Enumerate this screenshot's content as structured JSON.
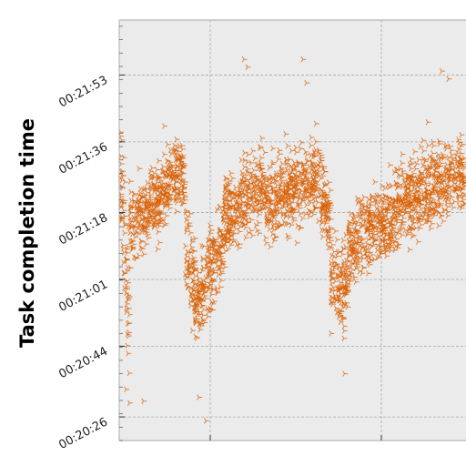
{
  "chart_data": {
    "type": "scatter",
    "title": "",
    "xlabel": "",
    "ylabel": "Task completion time",
    "y_ticks": [
      "00:20:26",
      "00:20:44",
      "00:21:01",
      "00:21:18",
      "00:21:36",
      "00:21:53"
    ],
    "y_tick_seconds": [
      1226,
      1244,
      1261,
      1278,
      1296,
      1313
    ],
    "ylim_seconds": [
      1220,
      1327
    ],
    "x_tick_count": 2,
    "grid": true,
    "legend": "none",
    "marker": "tri-right",
    "colors": {
      "marker": "#d95f02",
      "plot_bg": "#ebebeb",
      "grid": "#a8a8a8",
      "frame": "#b8b8b8"
    },
    "series": [
      {
        "segments": [
          {
            "x_range": [
              0.0,
              0.03
            ],
            "y_start": 1290,
            "y_end": 1250,
            "spread": 14
          },
          {
            "x_range": [
              0.03,
              0.14
            ],
            "y_start": 1274,
            "y_end": 1285,
            "spread": 7
          },
          {
            "x_range": [
              0.14,
              0.19
            ],
            "y_start": 1286,
            "y_end": 1288,
            "spread": 7
          },
          {
            "x_range": [
              0.19,
              0.22
            ],
            "y_start": 1268,
            "y_end": 1258,
            "spread": 10
          },
          {
            "x_range": [
              0.22,
              0.3
            ],
            "y_start": 1254,
            "y_end": 1270,
            "spread": 9
          },
          {
            "x_range": [
              0.3,
              0.42
            ],
            "y_start": 1276,
            "y_end": 1286,
            "spread": 8
          },
          {
            "x_range": [
              0.42,
              0.57
            ],
            "y_start": 1280,
            "y_end": 1288,
            "spread": 8
          },
          {
            "x_range": [
              0.57,
              0.61
            ],
            "y_start": 1284,
            "y_end": 1276,
            "spread": 9
          },
          {
            "x_range": [
              0.61,
              0.66
            ],
            "y_start": 1262,
            "y_end": 1258,
            "spread": 9
          },
          {
            "x_range": [
              0.66,
              0.8
            ],
            "y_start": 1270,
            "y_end": 1278,
            "spread": 8
          },
          {
            "x_range": [
              0.8,
              1.0
            ],
            "y_start": 1280,
            "y_end": 1288,
            "spread": 8
          }
        ],
        "outliers": [
          {
            "x": 0.36,
            "y": 1317
          },
          {
            "x": 0.37,
            "y": 1315
          },
          {
            "x": 0.53,
            "y": 1317
          },
          {
            "x": 0.54,
            "y": 1311
          },
          {
            "x": 0.93,
            "y": 1314
          },
          {
            "x": 0.95,
            "y": 1312
          },
          {
            "x": 0.25,
            "y": 1225
          },
          {
            "x": 0.23,
            "y": 1231
          },
          {
            "x": 0.65,
            "y": 1237
          },
          {
            "x": 0.02,
            "y": 1233
          },
          {
            "x": 0.07,
            "y": 1230
          },
          {
            "x": 0.13,
            "y": 1300
          },
          {
            "x": 0.48,
            "y": 1298
          },
          {
            "x": 0.89,
            "y": 1301
          }
        ]
      }
    ]
  }
}
